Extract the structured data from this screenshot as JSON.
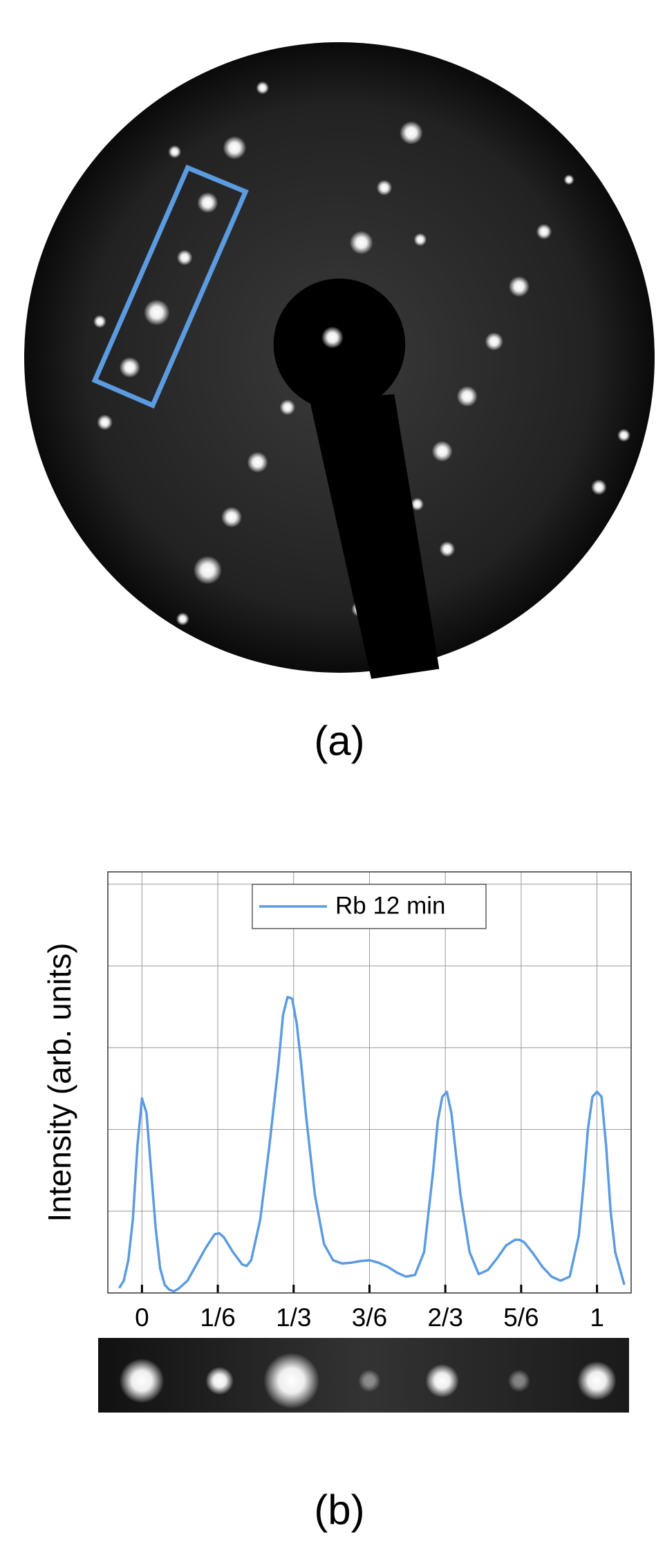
{
  "panel_labels": {
    "a": "(a)",
    "b": "(b)"
  },
  "chart_data": {
    "type": "line",
    "ylabel": "Intensity (arb. units)",
    "x": [
      -0.05,
      -0.04,
      -0.03,
      -0.02,
      -0.01,
      0,
      0.01,
      0.02,
      0.03,
      0.04,
      0.05,
      0.06,
      0.07,
      0.08,
      0.1,
      0.12,
      0.14,
      0.16,
      0.17,
      0.18,
      0.2,
      0.22,
      0.23,
      0.24,
      0.26,
      0.28,
      0.3,
      0.31,
      0.32,
      0.33,
      0.34,
      0.35,
      0.36,
      0.38,
      0.4,
      0.42,
      0.44,
      0.46,
      0.48,
      0.5,
      0.52,
      0.54,
      0.56,
      0.58,
      0.6,
      0.62,
      0.64,
      0.65,
      0.66,
      0.67,
      0.68,
      0.69,
      0.7,
      0.72,
      0.74,
      0.76,
      0.78,
      0.8,
      0.82,
      0.83,
      0.84,
      0.86,
      0.88,
      0.9,
      0.92,
      0.94,
      0.96,
      0.97,
      0.98,
      0.99,
      1.0,
      1.01,
      1.02,
      1.03,
      1.04,
      1.06
    ],
    "series": [
      {
        "name": "Rb 12 min",
        "color": "#5b9be0",
        "values": [
          0.06,
          0.15,
          0.4,
          0.9,
          1.8,
          2.38,
          2.2,
          1.5,
          0.8,
          0.3,
          0.1,
          0.04,
          0.02,
          0.05,
          0.15,
          0.35,
          0.55,
          0.72,
          0.73,
          0.68,
          0.5,
          0.35,
          0.33,
          0.4,
          0.9,
          1.8,
          2.8,
          3.4,
          3.62,
          3.6,
          3.3,
          2.8,
          2.2,
          1.2,
          0.6,
          0.4,
          0.36,
          0.37,
          0.39,
          0.4,
          0.37,
          0.32,
          0.25,
          0.2,
          0.22,
          0.5,
          1.5,
          2.1,
          2.4,
          2.46,
          2.2,
          1.7,
          1.2,
          0.5,
          0.23,
          0.28,
          0.42,
          0.58,
          0.65,
          0.65,
          0.62,
          0.48,
          0.32,
          0.2,
          0.15,
          0.2,
          0.7,
          1.3,
          2.0,
          2.4,
          2.46,
          2.4,
          1.8,
          1.0,
          0.5,
          0.1
        ]
      }
    ],
    "xlim": [
      -0.075,
      1.075
    ],
    "xticks": [
      {
        "value": 0,
        "label": "0"
      },
      {
        "value": 0.16667,
        "label": "1/6"
      },
      {
        "value": 0.33333,
        "label": "1/3"
      },
      {
        "value": 0.5,
        "label": "3/6"
      },
      {
        "value": 0.66667,
        "label": "2/3"
      },
      {
        "value": 0.83333,
        "label": "5/6"
      },
      {
        "value": 1,
        "label": "1"
      }
    ],
    "ylim": [
      0,
      5.15
    ],
    "yticks": [
      0,
      1,
      2,
      3,
      4,
      5
    ],
    "grid": true,
    "legend": "top-center"
  }
}
